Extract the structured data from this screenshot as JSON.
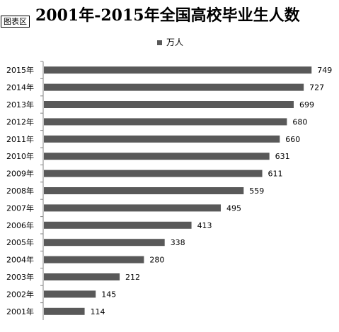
{
  "chart_area_tag": "图表区",
  "chart_data": {
    "type": "bar",
    "orientation": "horizontal",
    "title": "2001年-2015年全国高校毕业生人数",
    "categories": [
      "2015年",
      "2014年",
      "2013年",
      "2012年",
      "2011年",
      "2010年",
      "2009年",
      "2008年",
      "2007年",
      "2006年",
      "2005年",
      "2004年",
      "2003年",
      "2002年",
      "2001年"
    ],
    "series": [
      {
        "name": "万人",
        "values": [
          749,
          727,
          699,
          680,
          660,
          631,
          611,
          559,
          495,
          413,
          338,
          280,
          212,
          145,
          114
        ],
        "color": "#595959"
      }
    ],
    "data_labels": true,
    "xlim": [
      0,
      800
    ],
    "grid": false,
    "legend_position": "top"
  }
}
